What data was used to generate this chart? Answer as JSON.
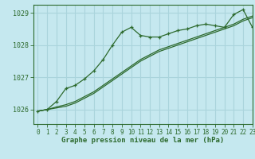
{
  "title": "Graphe pression niveau de la mer (hPa)",
  "background_color": "#c5e8ef",
  "grid_color": "#aad4dc",
  "line_color": "#2d6a2d",
  "xlim": [
    -0.5,
    23
  ],
  "ylim": [
    1025.55,
    1029.25
  ],
  "yticks": [
    1026,
    1027,
    1028,
    1029
  ],
  "xticks": [
    0,
    1,
    2,
    3,
    4,
    5,
    6,
    7,
    8,
    9,
    10,
    11,
    12,
    13,
    14,
    15,
    16,
    17,
    18,
    19,
    20,
    21,
    22,
    23
  ],
  "series1_x": [
    0,
    1,
    2,
    3,
    4,
    5,
    6,
    7,
    8,
    9,
    10,
    11,
    12,
    13,
    14,
    15,
    16,
    17,
    18,
    19,
    20,
    21,
    22,
    23
  ],
  "series1_y": [
    1025.95,
    1026.0,
    1026.25,
    1026.65,
    1026.75,
    1026.95,
    1027.2,
    1027.55,
    1028.0,
    1028.4,
    1028.55,
    1028.3,
    1028.25,
    1028.25,
    1028.35,
    1028.45,
    1028.5,
    1028.6,
    1028.65,
    1028.6,
    1028.55,
    1028.95,
    1029.1,
    1028.55
  ],
  "series2_x": [
    0,
    1,
    2,
    3,
    4,
    5,
    6,
    7,
    8,
    9,
    10,
    11,
    12,
    13,
    14,
    15,
    16,
    17,
    18,
    19,
    20,
    21,
    22,
    23
  ],
  "series2_y": [
    1025.95,
    1026.0,
    1026.05,
    1026.1,
    1026.2,
    1026.35,
    1026.5,
    1026.7,
    1026.9,
    1027.1,
    1027.3,
    1027.5,
    1027.65,
    1027.8,
    1027.9,
    1028.0,
    1028.1,
    1028.2,
    1028.3,
    1028.4,
    1028.5,
    1028.6,
    1028.75,
    1028.85
  ],
  "series3_x": [
    0,
    1,
    2,
    3,
    4,
    5,
    6,
    7,
    8,
    9,
    10,
    11,
    12,
    13,
    14,
    15,
    16,
    17,
    18,
    19,
    20,
    21,
    22,
    23
  ],
  "series3_y": [
    1025.95,
    1026.0,
    1026.08,
    1026.15,
    1026.25,
    1026.4,
    1026.55,
    1026.75,
    1026.95,
    1027.15,
    1027.35,
    1027.55,
    1027.7,
    1027.85,
    1027.95,
    1028.05,
    1028.15,
    1028.25,
    1028.35,
    1028.45,
    1028.55,
    1028.65,
    1028.8,
    1028.9
  ]
}
